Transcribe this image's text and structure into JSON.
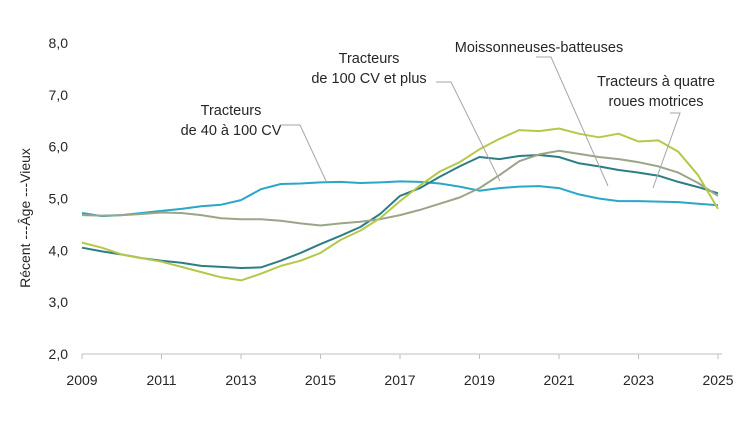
{
  "chart_data": {
    "type": "line",
    "ylabel": "Récent ---Âge ---Vieux",
    "xlim": [
      2009,
      2025.1
    ],
    "ylim": [
      2.0,
      8.0
    ],
    "x_ticks": [
      "2009",
      "2011",
      "2013",
      "2015",
      "2017",
      "2019",
      "2021",
      "2023",
      "2025"
    ],
    "y_ticks": [
      "2,0",
      "3,0",
      "4,0",
      "5,0",
      "6,0",
      "7,0",
      "8,0"
    ],
    "grid": false,
    "annotations": [
      {
        "lines": [
          "Tracteurs",
          "de 40 à 100 CV"
        ],
        "series": 0
      },
      {
        "lines": [
          "Tracteurs",
          "de 100 CV et plus"
        ],
        "series": 1
      },
      {
        "lines": [
          "Moissonneuses-batteuses"
        ],
        "series": 2
      },
      {
        "lines": [
          "Tracteurs à quatre",
          "roues motrices"
        ],
        "series": 3
      }
    ],
    "series": [
      {
        "name": "Tracteurs de 40 à 100 CV",
        "color": "#2aa6c9",
        "x": [
          2009,
          2009.5,
          2010,
          2010.5,
          2011,
          2011.5,
          2012,
          2012.5,
          2013,
          2013.5,
          2014,
          2014.5,
          2015,
          2015.5,
          2016,
          2016.5,
          2017,
          2017.5,
          2018,
          2018.5,
          2019,
          2019.5,
          2020,
          2020.5,
          2021,
          2021.5,
          2022,
          2022.5,
          2023,
          2023.5,
          2024,
          2024.5,
          2025
        ],
        "y": [
          4.72,
          4.66,
          4.68,
          4.72,
          4.76,
          4.8,
          4.85,
          4.88,
          4.97,
          5.18,
          5.28,
          5.29,
          5.31,
          5.32,
          5.3,
          5.31,
          5.33,
          5.32,
          5.29,
          5.23,
          5.15,
          5.2,
          5.23,
          5.24,
          5.2,
          5.08,
          5.0,
          4.95,
          4.95,
          4.94,
          4.93,
          4.9,
          4.87
        ]
      },
      {
        "name": "Tracteurs de 100 CV et plus",
        "color": "#2e7d84",
        "x": [
          2009,
          2009.5,
          2010,
          2010.5,
          2011,
          2011.5,
          2012,
          2012.5,
          2013,
          2013.5,
          2014,
          2014.5,
          2015,
          2015.5,
          2016,
          2016.5,
          2017,
          2017.5,
          2018,
          2018.5,
          2019,
          2019.5,
          2020,
          2020.5,
          2021,
          2021.5,
          2022,
          2022.5,
          2023,
          2023.5,
          2024,
          2024.5,
          2025
        ],
        "y": [
          4.05,
          3.98,
          3.92,
          3.85,
          3.8,
          3.76,
          3.7,
          3.68,
          3.66,
          3.67,
          3.8,
          3.95,
          4.12,
          4.28,
          4.45,
          4.7,
          5.05,
          5.2,
          5.42,
          5.62,
          5.8,
          5.76,
          5.82,
          5.84,
          5.8,
          5.68,
          5.62,
          5.55,
          5.5,
          5.44,
          5.32,
          5.22,
          5.1
        ]
      },
      {
        "name": "Moissonneuses-batteuses",
        "color": "#9aa589",
        "x": [
          2009,
          2009.5,
          2010,
          2010.5,
          2011,
          2011.5,
          2012,
          2012.5,
          2013,
          2013.5,
          2014,
          2014.5,
          2015,
          2015.5,
          2016,
          2016.5,
          2017,
          2017.5,
          2018,
          2018.5,
          2019,
          2019.5,
          2020,
          2020.5,
          2021,
          2021.5,
          2022,
          2022.5,
          2023,
          2023.5,
          2024,
          2024.5,
          2025
        ],
        "y": [
          4.68,
          4.67,
          4.68,
          4.7,
          4.73,
          4.72,
          4.68,
          4.62,
          4.6,
          4.6,
          4.57,
          4.52,
          4.48,
          4.52,
          4.55,
          4.6,
          4.68,
          4.78,
          4.9,
          5.02,
          5.2,
          5.45,
          5.72,
          5.85,
          5.92,
          5.86,
          5.8,
          5.76,
          5.7,
          5.62,
          5.5,
          5.3,
          5.05
        ]
      },
      {
        "name": "Tracteurs à quatre roues motrices",
        "color": "#b5c84a",
        "x": [
          2009,
          2009.5,
          2010,
          2010.5,
          2011,
          2011.5,
          2012,
          2012.5,
          2013,
          2013.5,
          2014,
          2014.5,
          2015,
          2015.5,
          2016,
          2016.5,
          2017,
          2017.5,
          2018,
          2018.5,
          2019,
          2019.5,
          2020,
          2020.5,
          2021,
          2021.5,
          2022,
          2022.5,
          2023,
          2023.5,
          2024,
          2024.5,
          2025
        ],
        "y": [
          4.15,
          4.05,
          3.92,
          3.85,
          3.78,
          3.68,
          3.58,
          3.48,
          3.42,
          3.55,
          3.7,
          3.8,
          3.95,
          4.2,
          4.38,
          4.62,
          4.95,
          5.25,
          5.52,
          5.7,
          5.95,
          6.15,
          6.32,
          6.3,
          6.35,
          6.25,
          6.18,
          6.25,
          6.1,
          6.12,
          5.9,
          5.45,
          4.8
        ]
      }
    ]
  }
}
